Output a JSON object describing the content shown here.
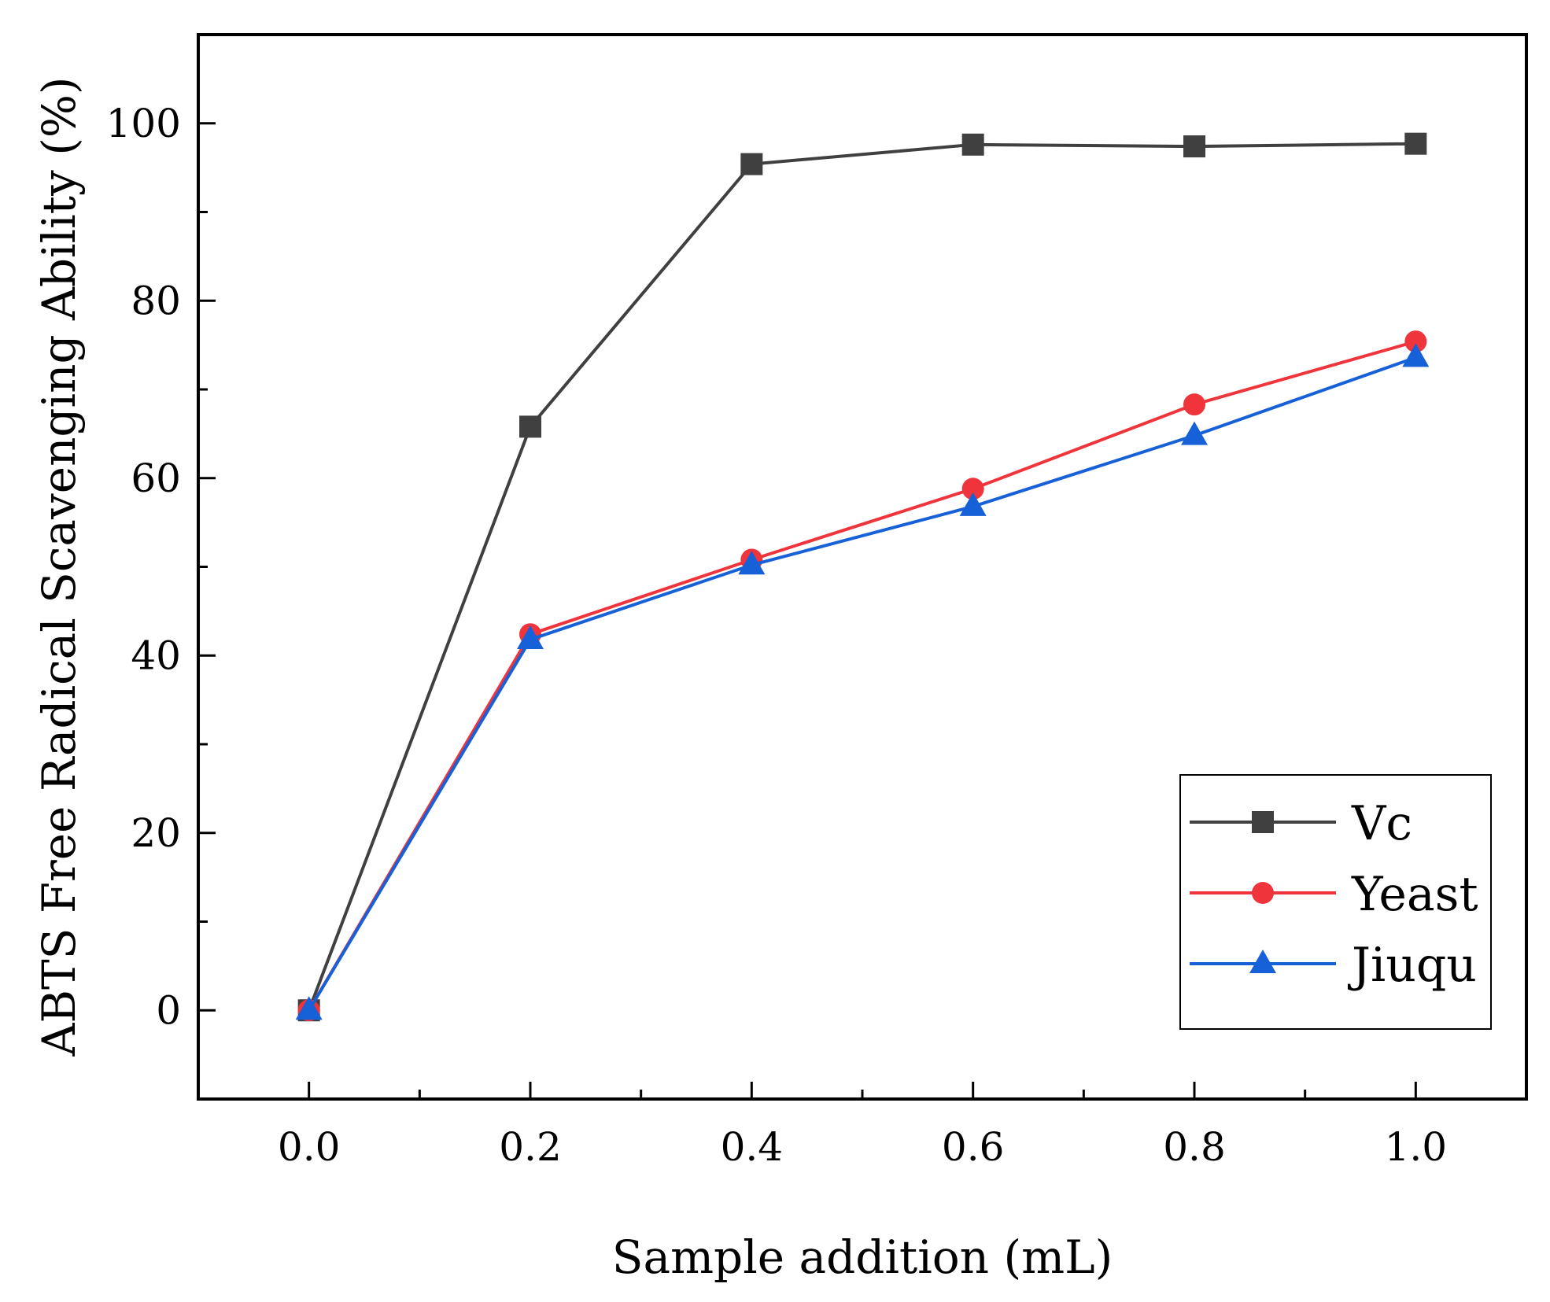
{
  "chart_data": {
    "type": "line",
    "title": "",
    "xlabel": "Sample addition (mL)",
    "ylabel": "ABTS Free Radical Scavenging Ability (%)",
    "xlim": [
      -0.1,
      1.1
    ],
    "ylim": [
      -10,
      110
    ],
    "x_ticks": [
      0.0,
      0.2,
      0.4,
      0.6,
      0.8,
      1.0
    ],
    "x_tick_labels": [
      "0.0",
      "0.2",
      "0.4",
      "0.6",
      "0.8",
      "1.0"
    ],
    "x_minor_ticks": [
      -0.1,
      0.1,
      0.3,
      0.5,
      0.7,
      0.9,
      1.1
    ],
    "y_ticks": [
      0,
      20,
      40,
      60,
      80,
      100
    ],
    "y_tick_labels": [
      "0",
      "20",
      "40",
      "60",
      "80",
      "100"
    ],
    "y_minor_ticks": [
      -10,
      10,
      30,
      50,
      70,
      90,
      110
    ],
    "x": [
      0.0,
      0.2,
      0.4,
      0.6,
      0.8,
      1.0
    ],
    "series": [
      {
        "name": "Vc",
        "marker": "square",
        "color": "#404040",
        "values": [
          0.0,
          65.8,
          95.4,
          97.6,
          97.4,
          97.7
        ]
      },
      {
        "name": "Yeast",
        "marker": "circle",
        "color": "#f0343c",
        "values": [
          0.0,
          42.4,
          50.8,
          58.8,
          68.3,
          75.4
        ]
      },
      {
        "name": "Jiuqu",
        "marker": "triangle",
        "color": "#1660d8",
        "values": [
          0.0,
          41.8,
          50.2,
          56.8,
          64.8,
          73.6
        ]
      }
    ],
    "grid": false,
    "legend_position": "bottom-right"
  }
}
